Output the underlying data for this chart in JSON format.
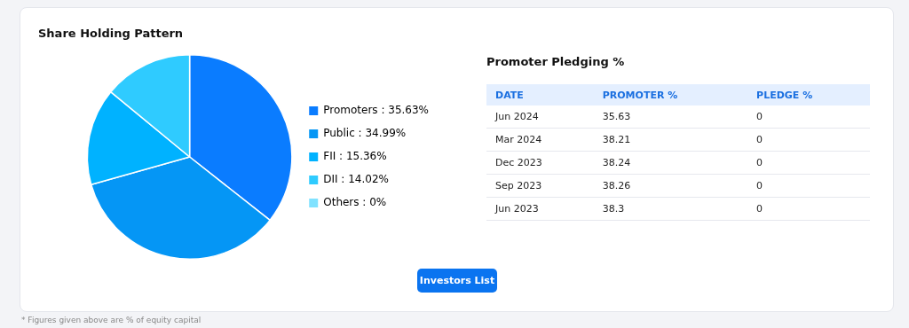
{
  "chart_data": [
    {
      "type": "pie",
      "title": "Share Holding Pattern",
      "categories": [
        "Promoters : 35.63%",
        "Public : 34.99%",
        "FII : 15.36%",
        "DII : 14.02%",
        "Others : 0%"
      ],
      "values": [
        35.63,
        34.99,
        15.36,
        14.02,
        0
      ],
      "colors": [
        "#0a7cff",
        "#0596f5",
        "#00b2ff",
        "#2fcbff",
        "#80e2ff"
      ],
      "legend": "right",
      "annotations": [
        "Investors List",
        "* Figures given above are % of equity capital"
      ]
    },
    {
      "type": "other",
      "title": "Promoter Pledging %",
      "xlabel": "DATE",
      "categories": [
        "Jun 2024",
        "Mar 2024",
        "Dec 2023",
        "Sep 2023",
        "Jun 2023"
      ],
      "series": [
        {
          "name": "PROMOTER %",
          "values": [
            35.63,
            38.21,
            38.24,
            38.26,
            38.3
          ]
        },
        {
          "name": "PLEDGE %",
          "values": [
            0,
            0,
            0,
            0,
            0
          ]
        }
      ],
      "data_labels": true
    }
  ]
}
